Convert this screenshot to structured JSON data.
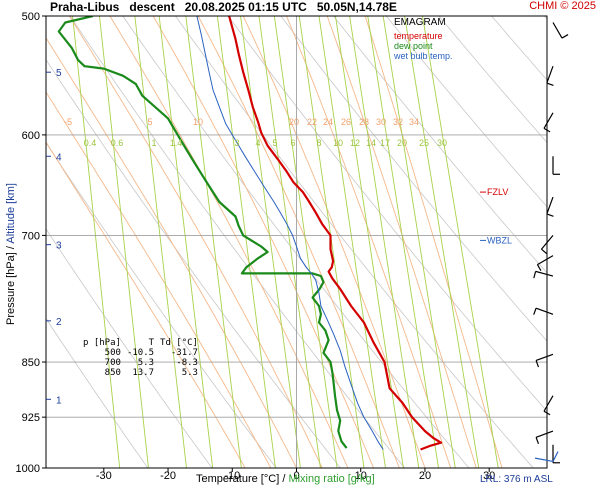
{
  "header": {
    "station": "Praha-Libus",
    "mode": "descent",
    "datetime": "20.08.2025 01:15 UTC",
    "coords": "50.05N,14.78E",
    "copyright": "CHMI © 2025"
  },
  "legend": {
    "title": "EMAGRAM",
    "items": [
      {
        "label": "temperature",
        "color": "#d40000"
      },
      {
        "label": "dew point",
        "color": "#1a8a1a"
      },
      {
        "label": "wet bulb temp.",
        "color": "#2a62c0"
      }
    ]
  },
  "axis_titles": {
    "y_left": "Pressure [hPa]",
    "y_sep": "/",
    "y_right": "Altitude [km]",
    "x": "Temperature [°C]",
    "x_sep": "/",
    "x_mr": "Mixing ratio [g/kg]"
  },
  "lrl": "LRL: 376 m ASL",
  "levels": {
    "fzlv": "FZLV",
    "wbzl": "WBZL"
  },
  "table": {
    "headers": [
      "p [hPa]",
      "T",
      "Td [°C]"
    ],
    "rows": [
      [
        "500",
        "-10.5",
        "-31.7"
      ],
      [
        "700",
        "5.3",
        "-8.3"
      ],
      [
        "850",
        "13.7",
        "5.3"
      ]
    ]
  },
  "chart_data": {
    "type": "line",
    "xlim": [
      -39,
      39
    ],
    "ylim": [
      1000,
      500
    ],
    "y_scale": "log",
    "x_ticks": [
      -30,
      -20,
      -10,
      0,
      10,
      20,
      30
    ],
    "x_tick_labels": [
      "-30",
      "-20",
      "-10",
      "0",
      "10",
      "20",
      "30"
    ],
    "p_ticks": [
      500,
      600,
      700,
      850,
      925,
      1000
    ],
    "p_tick_labels": [
      "500",
      "600",
      "700",
      "850",
      "925",
      "1000"
    ],
    "altitude_ticks": [
      {
        "km": 5,
        "p": 545
      },
      {
        "km": 4,
        "p": 620
      },
      {
        "km": 3,
        "p": 710
      },
      {
        "km": 2,
        "p": 798
      },
      {
        "km": 1,
        "p": 900
      }
    ],
    "altitude_tick_labels": [
      "5",
      "4",
      "3",
      "2",
      "1"
    ],
    "temp_label_values": [
      -5,
      5,
      10,
      20,
      22,
      24,
      26,
      28,
      30,
      32,
      34
    ],
    "temp_label_texts": [
      "-5",
      "5",
      "10",
      "20",
      "22",
      "24",
      "26",
      "28",
      "30",
      "32",
      "34"
    ],
    "mixing_ratio_values": [
      0.4,
      0.6,
      1,
      1.4,
      2,
      3,
      4,
      5,
      6,
      8,
      10,
      12,
      14,
      17,
      20,
      25,
      30
    ],
    "mixing_ratio_labels": [
      "0.4",
      "0.6",
      "1",
      "1.4",
      "2",
      "3",
      "4",
      "5",
      "6",
      "8",
      "10",
      "12",
      "14",
      "17",
      "20",
      "25",
      "30"
    ],
    "dry_adiabat_thetas": [
      250,
      260,
      270,
      280,
      290,
      300,
      310,
      320,
      330,
      340,
      350,
      360,
      370,
      380,
      390,
      400,
      410,
      420
    ],
    "moist_adiabat_thetas": [
      -8,
      -4,
      0,
      4,
      8,
      12,
      16,
      20,
      24,
      28,
      32
    ],
    "fzlv_p": 655,
    "wbzl_p": 700,
    "series": [
      {
        "name": "temperature",
        "color": "#d40000",
        "points": [
          [
            19.3,
            972
          ],
          [
            21.0,
            966
          ],
          [
            22.5,
            962
          ],
          [
            21.3,
            955
          ],
          [
            20.0,
            945
          ],
          [
            18.0,
            925
          ],
          [
            16.5,
            905
          ],
          [
            14.5,
            885
          ],
          [
            13.7,
            850
          ],
          [
            12.0,
            825
          ],
          [
            10.5,
            800
          ],
          [
            8.5,
            780
          ],
          [
            6.8,
            760
          ],
          [
            5.6,
            748
          ],
          [
            5.0,
            740
          ],
          [
            5.5,
            735
          ],
          [
            5.7,
            728
          ],
          [
            5.3,
            715
          ],
          [
            5.3,
            700
          ],
          [
            4.0,
            688
          ],
          [
            3.0,
            676
          ],
          [
            2.0,
            665
          ],
          [
            1.0,
            655
          ],
          [
            -0.5,
            645
          ],
          [
            -1.5,
            635
          ],
          [
            -3.0,
            622
          ],
          [
            -4.5,
            610
          ],
          [
            -5.5,
            598
          ],
          [
            -6.0,
            588
          ],
          [
            -6.8,
            575
          ],
          [
            -7.5,
            560
          ],
          [
            -8.3,
            545
          ],
          [
            -9.0,
            530
          ],
          [
            -9.5,
            518
          ],
          [
            -10.5,
            500
          ]
        ]
      },
      {
        "name": "dew point",
        "color": "#1a8a1a",
        "points": [
          [
            7.8,
            970
          ],
          [
            7.0,
            960
          ],
          [
            6.5,
            945
          ],
          [
            6.8,
            930
          ],
          [
            6.3,
            915
          ],
          [
            6.0,
            895
          ],
          [
            5.8,
            880
          ],
          [
            5.6,
            865
          ],
          [
            5.3,
            850
          ],
          [
            4.2,
            838
          ],
          [
            5.0,
            822
          ],
          [
            4.5,
            810
          ],
          [
            3.5,
            800
          ],
          [
            3.8,
            790
          ],
          [
            3.5,
            780
          ],
          [
            2.5,
            770
          ],
          [
            3.6,
            760
          ],
          [
            4.2,
            752
          ],
          [
            3.8,
            745
          ],
          [
            2.5,
            742
          ],
          [
            -2.0,
            742
          ],
          [
            -6.0,
            742
          ],
          [
            -8.5,
            742
          ],
          [
            -7.8,
            735
          ],
          [
            -6.0,
            725
          ],
          [
            -4.5,
            718
          ],
          [
            -5.5,
            712
          ],
          [
            -8.3,
            700
          ],
          [
            -9.0,
            690
          ],
          [
            -9.5,
            680
          ],
          [
            -12.0,
            665
          ],
          [
            -13.0,
            655
          ],
          [
            -14.0,
            645
          ],
          [
            -15.0,
            635
          ],
          [
            -16.0,
            625
          ],
          [
            -17.0,
            615
          ],
          [
            -18.0,
            605
          ],
          [
            -19.0,
            595
          ],
          [
            -20.0,
            585
          ],
          [
            -22.0,
            575
          ],
          [
            -24.0,
            565
          ],
          [
            -25.0,
            555
          ],
          [
            -27.0,
            548
          ],
          [
            -30.0,
            542
          ],
          [
            -33.0,
            540
          ],
          [
            -34.0,
            535
          ],
          [
            -35.0,
            525
          ],
          [
            -37.0,
            512
          ],
          [
            -36.0,
            505
          ],
          [
            -31.7,
            500
          ]
        ]
      },
      {
        "name": "wet bulb temp.",
        "color": "#2a62c0",
        "points": [
          [
            13.5,
            972
          ],
          [
            12.8,
            962
          ],
          [
            11.8,
            945
          ],
          [
            10.5,
            925
          ],
          [
            9.5,
            905
          ],
          [
            8.5,
            880
          ],
          [
            7.5,
            855
          ],
          [
            6.8,
            835
          ],
          [
            5.8,
            815
          ],
          [
            4.7,
            795
          ],
          [
            3.8,
            780
          ],
          [
            3.5,
            765
          ],
          [
            3.0,
            750
          ],
          [
            2.3,
            742
          ],
          [
            1.5,
            735
          ],
          [
            0.6,
            725
          ],
          [
            0.0,
            712
          ],
          [
            -0.6,
            700
          ],
          [
            -1.5,
            688
          ],
          [
            -2.5,
            676
          ],
          [
            -3.5,
            665
          ],
          [
            -5.0,
            650
          ],
          [
            -6.5,
            635
          ],
          [
            -8.0,
            620
          ],
          [
            -9.5,
            605
          ],
          [
            -11.0,
            590
          ],
          [
            -12.0,
            575
          ],
          [
            -13.0,
            560
          ],
          [
            -13.6,
            545
          ],
          [
            -14.2,
            530
          ],
          [
            -14.8,
            515
          ],
          [
            -15.5,
            500
          ]
        ]
      }
    ]
  },
  "wind_barbs": [
    {
      "p": 505,
      "dir": 150,
      "speed": 5
    },
    {
      "p": 540,
      "dir": 200,
      "speed": 5
    },
    {
      "p": 580,
      "dir": 210,
      "speed": 5
    },
    {
      "p": 620,
      "dir": 180,
      "speed": 5
    },
    {
      "p": 660,
      "dir": 200,
      "speed": 5
    },
    {
      "p": 700,
      "dir": 220,
      "speed": 5
    },
    {
      "p": 722,
      "dir": 240,
      "speed": 5
    },
    {
      "p": 745,
      "dir": 285,
      "speed": 5
    },
    {
      "p": 790,
      "dir": 290,
      "speed": 5
    },
    {
      "p": 840,
      "dir": 250,
      "speed": 5
    },
    {
      "p": 895,
      "dir": 210,
      "speed": 5
    },
    {
      "p": 945,
      "dir": 250,
      "speed": 5
    },
    {
      "p": 965,
      "dir": 180,
      "speed": 5
    }
  ]
}
